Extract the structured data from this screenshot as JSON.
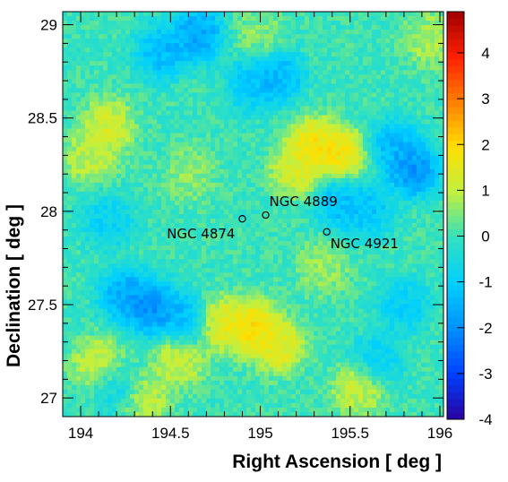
{
  "chart_data": {
    "type": "heatmap",
    "title": "",
    "xlabel": "Right Ascension [ deg ]",
    "ylabel": "Declination [ deg ]",
    "xlim": [
      193.9,
      196.02
    ],
    "ylim": [
      26.9,
      29.07
    ],
    "x_ticks": [
      194,
      194.5,
      195,
      195.5,
      196
    ],
    "x_tick_labels": [
      "194",
      "194.5",
      "195",
      "195.5",
      "196"
    ],
    "y_ticks": [
      27,
      27.5,
      28,
      28.5,
      29
    ],
    "y_tick_labels": [
      "27",
      "27.5",
      "28",
      "28.5",
      "29"
    ],
    "colorbar": {
      "range": [
        -4,
        4.9
      ],
      "ticks": [
        -4,
        -3,
        -2,
        -1,
        0,
        1,
        2,
        3,
        4
      ],
      "tick_labels": [
        "-4",
        "-3",
        "-2",
        "-1",
        "0",
        "1",
        "2",
        "3",
        "4"
      ],
      "colormap": [
        "#2a00a0",
        "#0040ff",
        "#0090ff",
        "#00d0ff",
        "#30e0c0",
        "#c0f040",
        "#ffe000",
        "#ff8000",
        "#ff2000",
        "#a00000"
      ]
    },
    "grid": false,
    "features": [
      {
        "ra": 194.65,
        "dec": 28.95,
        "value": -2.3
      },
      {
        "ra": 194.45,
        "dec": 28.85,
        "value": -1.8
      },
      {
        "ra": 195.1,
        "dec": 28.72,
        "value": -1.9
      },
      {
        "ra": 194.95,
        "dec": 28.68,
        "value": -1.5
      },
      {
        "ra": 195.85,
        "dec": 28.22,
        "value": -2.5
      },
      {
        "ra": 195.75,
        "dec": 28.35,
        "value": -1.8
      },
      {
        "ra": 195.45,
        "dec": 28.05,
        "value": -1.7
      },
      {
        "ra": 195.6,
        "dec": 28.0,
        "value": -1.5
      },
      {
        "ra": 194.4,
        "dec": 27.48,
        "value": -2.6
      },
      {
        "ra": 194.25,
        "dec": 27.55,
        "value": -2.2
      },
      {
        "ra": 194.6,
        "dec": 27.42,
        "value": -1.9
      },
      {
        "ra": 194.15,
        "dec": 27.95,
        "value": -1.2
      },
      {
        "ra": 195.8,
        "dec": 27.5,
        "value": -1.3
      },
      {
        "ra": 195.65,
        "dec": 27.2,
        "value": -1.2
      },
      {
        "ra": 194.2,
        "dec": 27.05,
        "value": -1.0
      },
      {
        "ra": 195.3,
        "dec": 28.35,
        "value": 2.4
      },
      {
        "ra": 195.45,
        "dec": 28.3,
        "value": 2.2
      },
      {
        "ra": 195.2,
        "dec": 28.22,
        "value": 1.6
      },
      {
        "ra": 194.75,
        "dec": 27.4,
        "value": 2.0
      },
      {
        "ra": 194.95,
        "dec": 27.38,
        "value": 2.5
      },
      {
        "ra": 195.1,
        "dec": 27.28,
        "value": 2.0
      },
      {
        "ra": 194.15,
        "dec": 28.45,
        "value": 1.6
      },
      {
        "ra": 194.05,
        "dec": 28.28,
        "value": 1.3
      },
      {
        "ra": 194.1,
        "dec": 27.18,
        "value": 1.5
      },
      {
        "ra": 194.55,
        "dec": 27.2,
        "value": 1.4
      },
      {
        "ra": 195.55,
        "dec": 27.05,
        "value": 1.5
      },
      {
        "ra": 194.35,
        "dec": 27.0,
        "value": 1.3
      },
      {
        "ra": 195.95,
        "dec": 28.92,
        "value": 1.1
      },
      {
        "ra": 195.35,
        "dec": 27.7,
        "value": 0.9
      },
      {
        "ra": 194.6,
        "dec": 28.2,
        "value": 0.8
      },
      {
        "ra": 195.0,
        "dec": 28.95,
        "value": 0.7
      }
    ],
    "annotations": [
      {
        "label": "NGC 4874",
        "ra": 194.9,
        "dec": 27.96
      },
      {
        "label": "NGC 4889",
        "ra": 195.03,
        "dec": 27.98
      },
      {
        "label": "NGC 4921",
        "ra": 195.37,
        "dec": 27.89
      }
    ]
  }
}
